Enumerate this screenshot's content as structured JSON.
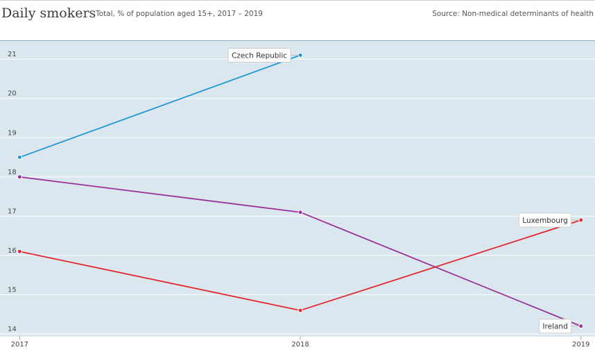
{
  "chart_data": {
    "type": "line",
    "title": "Daily smokers",
    "subtitle": "Total, % of population aged 15+, 2017 – 2019",
    "source": "Source: Non-medical determinants of health",
    "x": [
      2017,
      2018,
      2019
    ],
    "xlim": [
      2016.93,
      2019.05
    ],
    "xticks": [
      2017,
      2018,
      2019
    ],
    "ylim": [
      13.93,
      21.48
    ],
    "yticks": [
      14,
      15,
      16,
      17,
      18,
      19,
      20,
      21
    ],
    "grid": true,
    "series": [
      {
        "name": "Czech Republic",
        "color": "#1f96d3",
        "values": [
          18.5,
          21.1,
          null
        ]
      },
      {
        "name": "Ireland",
        "color": "#993399",
        "values": [
          18.0,
          17.1,
          14.2
        ]
      },
      {
        "name": "Luxembourg",
        "color": "#e3282f",
        "values": [
          16.1,
          14.6,
          16.9
        ]
      }
    ]
  }
}
